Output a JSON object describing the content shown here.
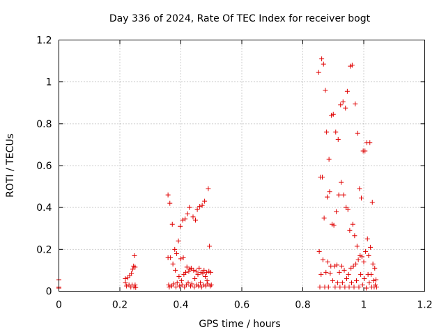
{
  "chart_data": {
    "type": "scatter",
    "title": "Day 336 of 2024, Rate Of TEC Index for receiver bogt",
    "xlabel": "GPS time / hours",
    "ylabel": "ROTI / TECUs",
    "xlim": [
      0,
      1.2
    ],
    "ylim": [
      0,
      1.2
    ],
    "xticks": [
      0,
      0.2,
      0.4,
      0.6,
      0.8,
      1,
      1.2
    ],
    "yticks": [
      0,
      0.2,
      0.4,
      0.6,
      0.8,
      1,
      1.2
    ],
    "xtick_labels": [
      "0",
      "0.2",
      "0.4",
      "0.6",
      "0.8",
      "1",
      "1.2"
    ],
    "ytick_labels": [
      "0",
      "0.2",
      "0.4",
      "0.6",
      "0.8",
      "1",
      "1.2"
    ],
    "grid": true,
    "marker": "plus",
    "color": "#e00000",
    "series": [
      {
        "name": "ROTI",
        "points": [
          [
            0.0,
            0.055
          ],
          [
            0.0,
            0.02
          ],
          [
            0.0,
            0.015
          ],
          [
            0.218,
            0.06
          ],
          [
            0.218,
            0.04
          ],
          [
            0.222,
            0.025
          ],
          [
            0.226,
            0.065
          ],
          [
            0.23,
            0.03
          ],
          [
            0.232,
            0.075
          ],
          [
            0.236,
            0.02
          ],
          [
            0.238,
            0.085
          ],
          [
            0.24,
            0.03
          ],
          [
            0.242,
            0.105
          ],
          [
            0.245,
            0.12
          ],
          [
            0.246,
            0.02
          ],
          [
            0.248,
            0.17
          ],
          [
            0.25,
            0.115
          ],
          [
            0.25,
            0.03
          ],
          [
            0.252,
            0.018
          ],
          [
            0.358,
            0.46
          ],
          [
            0.358,
            0.16
          ],
          [
            0.36,
            0.03
          ],
          [
            0.362,
            0.02
          ],
          [
            0.364,
            0.42
          ],
          [
            0.366,
            0.16
          ],
          [
            0.37,
            0.025
          ],
          [
            0.372,
            0.32
          ],
          [
            0.374,
            0.13
          ],
          [
            0.376,
            0.035
          ],
          [
            0.38,
            0.2
          ],
          [
            0.382,
            0.1
          ],
          [
            0.384,
            0.02
          ],
          [
            0.386,
            0.18
          ],
          [
            0.388,
            0.04
          ],
          [
            0.392,
            0.24
          ],
          [
            0.394,
            0.07
          ],
          [
            0.396,
            0.025
          ],
          [
            0.398,
            0.31
          ],
          [
            0.4,
            0.155
          ],
          [
            0.402,
            0.05
          ],
          [
            0.404,
            0.03
          ],
          [
            0.406,
            0.34
          ],
          [
            0.408,
            0.16
          ],
          [
            0.41,
            0.08
          ],
          [
            0.412,
            0.02
          ],
          [
            0.414,
            0.345
          ],
          [
            0.416,
            0.09
          ],
          [
            0.418,
            0.03
          ],
          [
            0.42,
            0.115
          ],
          [
            0.422,
            0.37
          ],
          [
            0.424,
            0.04
          ],
          [
            0.426,
            0.095
          ],
          [
            0.428,
            0.4
          ],
          [
            0.43,
            0.105
          ],
          [
            0.432,
            0.025
          ],
          [
            0.434,
            0.11
          ],
          [
            0.436,
            0.035
          ],
          [
            0.44,
            0.355
          ],
          [
            0.442,
            0.1
          ],
          [
            0.444,
            0.02
          ],
          [
            0.446,
            0.06
          ],
          [
            0.448,
            0.34
          ],
          [
            0.45,
            0.095
          ],
          [
            0.452,
            0.03
          ],
          [
            0.454,
            0.39
          ],
          [
            0.456,
            0.08
          ],
          [
            0.458,
            0.025
          ],
          [
            0.46,
            0.11
          ],
          [
            0.462,
            0.405
          ],
          [
            0.464,
            0.04
          ],
          [
            0.466,
            0.09
          ],
          [
            0.468,
            0.02
          ],
          [
            0.47,
            0.41
          ],
          [
            0.472,
            0.085
          ],
          [
            0.474,
            0.03
          ],
          [
            0.476,
            0.1
          ],
          [
            0.478,
            0.43
          ],
          [
            0.48,
            0.07
          ],
          [
            0.482,
            0.025
          ],
          [
            0.484,
            0.09
          ],
          [
            0.486,
            0.05
          ],
          [
            0.488,
            0.035
          ],
          [
            0.49,
            0.49
          ],
          [
            0.492,
            0.095
          ],
          [
            0.494,
            0.215
          ],
          [
            0.496,
            0.025
          ],
          [
            0.498,
            0.09
          ],
          [
            0.5,
            0.03
          ],
          [
            0.852,
            1.045
          ],
          [
            0.854,
            0.19
          ],
          [
            0.856,
            0.02
          ],
          [
            0.858,
            0.545
          ],
          [
            0.86,
            0.08
          ],
          [
            0.862,
            1.11
          ],
          [
            0.864,
            0.545
          ],
          [
            0.866,
            0.15
          ],
          [
            0.868,
            1.085
          ],
          [
            0.87,
            0.35
          ],
          [
            0.872,
            0.02
          ],
          [
            0.874,
            0.96
          ],
          [
            0.876,
            0.09
          ],
          [
            0.878,
            0.76
          ],
          [
            0.88,
            0.45
          ],
          [
            0.882,
            0.14
          ],
          [
            0.884,
            0.02
          ],
          [
            0.886,
            0.63
          ],
          [
            0.888,
            0.475
          ],
          [
            0.89,
            0.085
          ],
          [
            0.892,
            0.12
          ],
          [
            0.894,
            0.84
          ],
          [
            0.896,
            0.32
          ],
          [
            0.898,
            0.05
          ],
          [
            0.9,
            0.845
          ],
          [
            0.902,
            0.315
          ],
          [
            0.904,
            0.12
          ],
          [
            0.906,
            0.02
          ],
          [
            0.908,
            0.76
          ],
          [
            0.91,
            0.38
          ],
          [
            0.912,
            0.125
          ],
          [
            0.914,
            0.04
          ],
          [
            0.916,
            0.725
          ],
          [
            0.918,
            0.46
          ],
          [
            0.92,
            0.09
          ],
          [
            0.922,
            0.02
          ],
          [
            0.924,
            0.89
          ],
          [
            0.926,
            0.52
          ],
          [
            0.928,
            0.12
          ],
          [
            0.93,
            0.04
          ],
          [
            0.932,
            0.905
          ],
          [
            0.934,
            0.46
          ],
          [
            0.936,
            0.1
          ],
          [
            0.938,
            0.02
          ],
          [
            0.94,
            0.875
          ],
          [
            0.942,
            0.4
          ],
          [
            0.944,
            0.06
          ],
          [
            0.946,
            0.955
          ],
          [
            0.948,
            0.39
          ],
          [
            0.95,
            0.08
          ],
          [
            0.952,
            0.02
          ],
          [
            0.954,
            0.29
          ],
          [
            0.956,
            1.075
          ],
          [
            0.958,
            0.11
          ],
          [
            0.96,
            0.04
          ],
          [
            0.962,
            1.08
          ],
          [
            0.964,
            0.32
          ],
          [
            0.966,
            0.12
          ],
          [
            0.968,
            0.02
          ],
          [
            0.97,
            0.265
          ],
          [
            0.972,
            0.895
          ],
          [
            0.974,
            0.13
          ],
          [
            0.976,
            0.05
          ],
          [
            0.978,
            0.215
          ],
          [
            0.98,
            0.755
          ],
          [
            0.982,
            0.15
          ],
          [
            0.984,
            0.02
          ],
          [
            0.986,
            0.49
          ],
          [
            0.988,
            0.17
          ],
          [
            0.99,
            0.08
          ],
          [
            0.992,
            0.445
          ],
          [
            0.994,
            0.165
          ],
          [
            0.996,
            0.03
          ],
          [
            0.998,
            0.67
          ],
          [
            1.0,
            0.14
          ],
          [
            1.002,
            0.06
          ],
          [
            1.004,
            0.67
          ],
          [
            1.006,
            0.19
          ],
          [
            1.008,
            0.015
          ],
          [
            1.01,
            0.71
          ],
          [
            1.012,
            0.25
          ],
          [
            1.014,
            0.08
          ],
          [
            1.016,
            0.17
          ],
          [
            1.018,
            0.04
          ],
          [
            1.02,
            0.71
          ],
          [
            1.022,
            0.21
          ],
          [
            1.024,
            0.08
          ],
          [
            1.026,
            0.02
          ],
          [
            1.028,
            0.425
          ],
          [
            1.03,
            0.13
          ],
          [
            1.032,
            0.05
          ],
          [
            1.034,
            0.02
          ],
          [
            1.036,
            0.11
          ],
          [
            1.038,
            0.03
          ],
          [
            1.04,
            0.055
          ],
          [
            1.042,
            0.02
          ]
        ]
      }
    ]
  }
}
